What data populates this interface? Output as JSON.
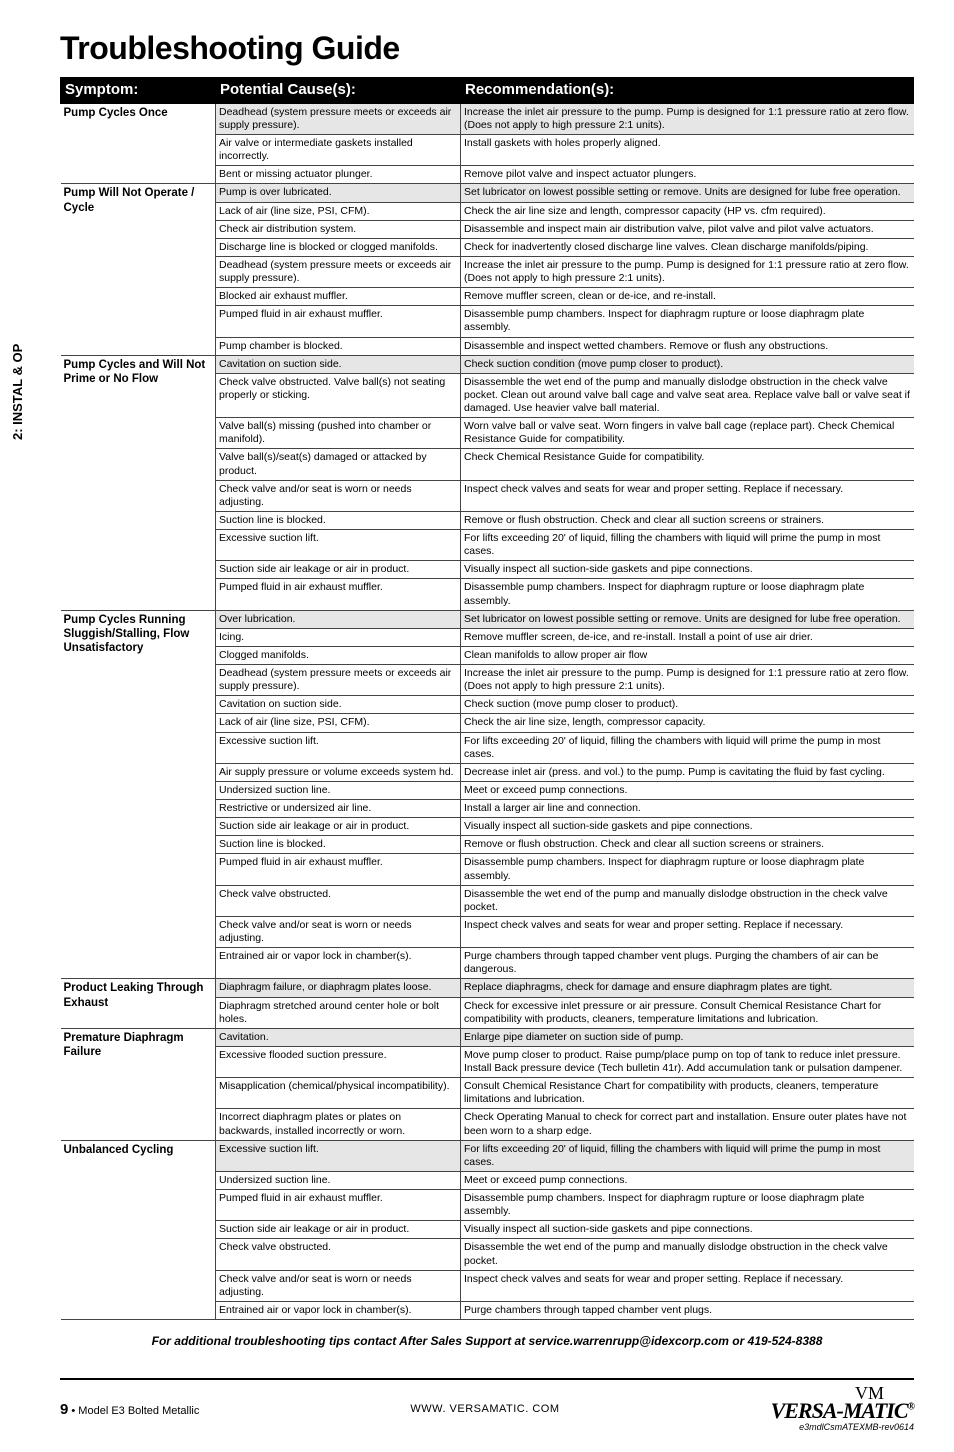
{
  "sideTab": "2: INSTAL & OP",
  "title": "Troubleshooting Guide",
  "headers": {
    "symptom": "Symptom:",
    "cause": "Potential Cause(s):",
    "rec": "Recommendation(s):"
  },
  "groups": [
    {
      "symptom": "Pump Cycles Once",
      "rows": [
        {
          "cause": "Deadhead (system pressure meets or exceeds air supply pressure).",
          "rec": "Increase the inlet air pressure to the pump. Pump is designed for 1:1 pressure ratio at zero flow. (Does not apply to high pressure 2:1 units).",
          "alt": true
        },
        {
          "cause": "Air valve or intermediate gaskets installed incorrectly.",
          "rec": "Install gaskets with holes properly aligned.",
          "alt": false
        },
        {
          "cause": "Bent or missing actuator plunger.",
          "rec": "Remove pilot valve and inspect actuator plungers.",
          "alt": false
        }
      ]
    },
    {
      "symptom": "Pump Will Not Operate / Cycle",
      "rows": [
        {
          "cause": "Pump is over lubricated.",
          "rec": "Set lubricator on lowest possible setting or remove. Units are designed for lube free operation.",
          "alt": true
        },
        {
          "cause": "Lack of air (line size, PSI, CFM).",
          "rec": "Check the air line size and length, compressor capacity (HP vs. cfm required).",
          "alt": false
        },
        {
          "cause": "Check air distribution system.",
          "rec": "Disassemble and inspect main air distribution valve, pilot valve and pilot valve actuators.",
          "alt": false
        },
        {
          "cause": "Discharge line is blocked or clogged manifolds.",
          "rec": "Check for inadvertently closed discharge line valves. Clean discharge manifolds/piping.",
          "alt": false
        },
        {
          "cause": "Deadhead (system pressure meets or exceeds air supply pressure).",
          "rec": "Increase the inlet air pressure to the pump. Pump is designed for 1:1 pressure ratio at zero flow. (Does not apply to high pressure 2:1 units).",
          "alt": false
        },
        {
          "cause": "Blocked air exhaust muffler.",
          "rec": "Remove muffler screen, clean or de-ice, and re-install.",
          "alt": false
        },
        {
          "cause": "Pumped fluid in air exhaust muffler.",
          "rec": "Disassemble pump chambers. Inspect for diaphragm rupture or loose diaphragm plate assembly.",
          "alt": false
        },
        {
          "cause": "Pump chamber is blocked.",
          "rec": "Disassemble and inspect wetted chambers. Remove or flush any obstructions.",
          "alt": false
        }
      ]
    },
    {
      "symptom": "Pump Cycles and Will Not Prime or No Flow",
      "rows": [
        {
          "cause": "Cavitation on suction side.",
          "rec": "Check suction condition (move pump closer to product).",
          "alt": true
        },
        {
          "cause": "Check valve obstructed. Valve ball(s) not seating properly or sticking.",
          "rec": "Disassemble the wet end of the pump and manually dislodge obstruction in the check valve pocket. Clean out around valve ball cage and valve seat area. Replace valve ball or valve seat if damaged. Use heavier valve ball material.",
          "alt": false
        },
        {
          "cause": "Valve ball(s) missing (pushed into chamber or manifold).",
          "rec": "Worn valve ball or valve seat. Worn fingers in valve ball cage (replace part). Check Chemical Resistance Guide for compatibility.",
          "alt": false
        },
        {
          "cause": "Valve ball(s)/seat(s) damaged or attacked by product.",
          "rec": "Check Chemical Resistance Guide for compatibility.",
          "alt": false
        },
        {
          "cause": "Check valve and/or seat is worn or needs adjusting.",
          "rec": "Inspect check valves and seats for wear and proper setting. Replace if necessary.",
          "alt": false
        },
        {
          "cause": "Suction line is blocked.",
          "rec": "Remove or flush obstruction. Check and clear all suction screens or strainers.",
          "alt": false
        },
        {
          "cause": "Excessive suction lift.",
          "rec": "For lifts exceeding 20' of liquid, filling the chambers with liquid will prime the pump in most cases.",
          "alt": false
        },
        {
          "cause": "Suction side air leakage or air in product.",
          "rec": "Visually inspect all suction-side gaskets and pipe connections.",
          "alt": false
        },
        {
          "cause": "Pumped fluid in air exhaust muffler.",
          "rec": "Disassemble pump chambers. Inspect for diaphragm rupture or loose diaphragm plate assembly.",
          "alt": false
        }
      ]
    },
    {
      "symptom": "Pump Cycles Running Sluggish/Stalling, Flow Unsatisfactory",
      "rows": [
        {
          "cause": "Over lubrication.",
          "rec": "Set lubricator on lowest possible setting or remove. Units are designed for lube free operation.",
          "alt": true
        },
        {
          "cause": "Icing.",
          "rec": "Remove muffler screen, de-ice, and re-install. Install a point of use air drier.",
          "alt": false
        },
        {
          "cause": "Clogged manifolds.",
          "rec": "Clean manifolds to allow proper air flow",
          "alt": false
        },
        {
          "cause": "Deadhead (system pressure meets or exceeds air supply pressure).",
          "rec": "Increase the inlet air pressure to the pump. Pump is designed for 1:1 pressure ratio at zero flow. (Does not apply to high pressure 2:1 units).",
          "alt": false
        },
        {
          "cause": "Cavitation on suction side.",
          "rec": "Check suction (move pump closer to product).",
          "alt": false
        },
        {
          "cause": "Lack of air (line size, PSI, CFM).",
          "rec": "Check the air line size, length, compressor capacity.",
          "alt": false
        },
        {
          "cause": "Excessive suction lift.",
          "rec": "For lifts exceeding 20' of liquid, filling the chambers with liquid will prime the pump in most cases.",
          "alt": false
        },
        {
          "cause": "Air supply pressure or volume exceeds system hd.",
          "rec": "Decrease inlet air (press. and vol.) to the pump. Pump is cavitating the fluid by fast cycling.",
          "alt": false
        },
        {
          "cause": "Undersized suction line.",
          "rec": "Meet or exceed pump connections.",
          "alt": false
        },
        {
          "cause": "Restrictive or undersized air line.",
          "rec": "Install a larger air line and connection.",
          "alt": false
        },
        {
          "cause": "Suction side air leakage or air in product.",
          "rec": "Visually inspect all suction-side gaskets and pipe connections.",
          "alt": false
        },
        {
          "cause": "Suction line is blocked.",
          "rec": "Remove or flush obstruction. Check and clear all suction screens or strainers.",
          "alt": false
        },
        {
          "cause": "Pumped fluid in air exhaust muffler.",
          "rec": "Disassemble pump chambers. Inspect for diaphragm rupture or loose diaphragm plate assembly.",
          "alt": false
        },
        {
          "cause": "Check valve obstructed.",
          "rec": "Disassemble the wet end of the pump and manually dislodge obstruction in the check valve pocket.",
          "alt": false
        },
        {
          "cause": "Check valve and/or seat is worn or needs adjusting.",
          "rec": "Inspect check valves and seats for wear and proper setting. Replace if necessary.",
          "alt": false
        },
        {
          "cause": "Entrained air or vapor lock in chamber(s).",
          "rec": "Purge chambers through tapped chamber vent plugs. Purging the chambers of air can be dangerous.",
          "alt": false
        }
      ]
    },
    {
      "symptom": "Product Leaking Through Exhaust",
      "rows": [
        {
          "cause": "Diaphragm failure, or diaphragm plates loose.",
          "rec": "Replace diaphragms, check for damage and ensure diaphragm plates are tight.",
          "alt": true
        },
        {
          "cause": "Diaphragm stretched around center hole or bolt holes.",
          "rec": "Check for excessive inlet pressure or air pressure. Consult Chemical Resistance Chart for compatibility with products, cleaners, temperature limitations and lubrication.",
          "alt": false
        }
      ]
    },
    {
      "symptom": "Premature Diaphragm Failure",
      "rows": [
        {
          "cause": "Cavitation.",
          "rec": "Enlarge pipe diameter on suction side of pump.",
          "alt": true
        },
        {
          "cause": "Excessive flooded suction pressure.",
          "rec": "Move pump closer to product. Raise pump/place pump on top of tank to reduce inlet pressure. Install Back pressure device (Tech bulletin 41r). Add accumulation tank or pulsation dampener.",
          "alt": false
        },
        {
          "cause": "Misapplication (chemical/physical incompatibility).",
          "rec": "Consult Chemical Resistance Chart for compatibility with products, cleaners, temperature limitations and lubrication.",
          "alt": false
        },
        {
          "cause": "Incorrect diaphragm plates or plates on backwards, installed incorrectly or worn.",
          "rec": "Check Operating Manual to check for correct part and installation. Ensure outer plates have not been worn to a sharp edge.",
          "alt": false
        }
      ]
    },
    {
      "symptom": "Unbalanced Cycling",
      "rows": [
        {
          "cause": "Excessive suction lift.",
          "rec": "For lifts exceeding 20' of liquid, filling the chambers with liquid will prime the pump in most cases.",
          "alt": true
        },
        {
          "cause": "Undersized suction line.",
          "rec": "Meet or exceed pump connections.",
          "alt": false
        },
        {
          "cause": "Pumped fluid in air exhaust muffler.",
          "rec": "Disassemble pump chambers. Inspect for diaphragm rupture or loose diaphragm plate assembly.",
          "alt": false
        },
        {
          "cause": "Suction side air leakage or air in product.",
          "rec": "Visually inspect all suction-side gaskets and pipe connections.",
          "alt": false
        },
        {
          "cause": "Check valve obstructed.",
          "rec": "Disassemble the wet end of the pump and manually dislodge obstruction in the check valve pocket.",
          "alt": false
        },
        {
          "cause": "Check valve and/or seat is worn or needs adjusting.",
          "rec": "Inspect check valves and seats for wear and proper setting. Replace if necessary.",
          "alt": false
        },
        {
          "cause": "Entrained air or vapor lock in chamber(s).",
          "rec": "Purge chambers through tapped chamber vent plugs.",
          "alt": false
        }
      ]
    }
  ],
  "footnote": "For additional troubleshooting tips contact After Sales Support at service.warrenrupp@idexcorp.com or 419-524-8388",
  "footer": {
    "pageNum": "9",
    "model": " • Model E3 Bolted Metallic",
    "url": "WWW. VERSAMATIC. COM",
    "brand": "VERSA-MATIC",
    "rev": "e3mdlCsmATEXMB-rev0614"
  }
}
